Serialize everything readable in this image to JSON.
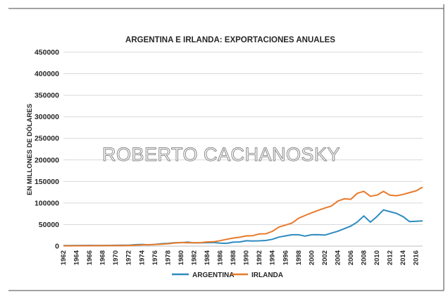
{
  "chart_data": {
    "type": "line",
    "title": "ARGENTINA  E IRLANDA:  EXPORTACIONES  ANUALES",
    "xlabel": "",
    "ylabel": "EN MILLONES DE DÓLARES",
    "ylim": [
      0,
      450000
    ],
    "yticks": [
      "0",
      "50000",
      "100000",
      "150000",
      "200000",
      "250000",
      "300000",
      "350000",
      "400000",
      "450000"
    ],
    "xticks": [
      "1962",
      "1964",
      "1966",
      "1968",
      "1970",
      "1972",
      "1974",
      "1976",
      "1978",
      "1980",
      "1982",
      "1984",
      "1986",
      "1988",
      "1990",
      "1992",
      "1994",
      "1996",
      "1998",
      "2000",
      "2002",
      "2004",
      "2006",
      "2008",
      "2010",
      "2012",
      "2014",
      "2016"
    ],
    "grid": true,
    "legend_position": "bottom",
    "watermark": "ROBERTO CACHANOSKY",
    "x": [
      1962,
      1963,
      1964,
      1965,
      1966,
      1967,
      1968,
      1969,
      1970,
      1971,
      1972,
      1973,
      1974,
      1975,
      1976,
      1977,
      1978,
      1979,
      1980,
      1981,
      1982,
      1983,
      1984,
      1985,
      1986,
      1987,
      1988,
      1989,
      1990,
      1991,
      1992,
      1993,
      1994,
      1995,
      1996,
      1997,
      1998,
      1999,
      2000,
      2001,
      2002,
      2003,
      2004,
      2005,
      2006,
      2007,
      2008,
      2009,
      2010,
      2011,
      2012,
      2013,
      2014,
      2015,
      2016,
      2017
    ],
    "series": [
      {
        "name": "ARGENTINA",
        "color": "#2e8bc0",
        "values": [
          1200,
          1300,
          1400,
          1500,
          1600,
          1500,
          1400,
          1600,
          1800,
          1900,
          2100,
          3300,
          3900,
          3000,
          3900,
          5600,
          6400,
          7800,
          8000,
          9100,
          7600,
          7800,
          8100,
          8400,
          6900,
          6400,
          9100,
          9600,
          12400,
          12000,
          12200,
          13100,
          15800,
          21000,
          23800,
          26400,
          26400,
          23300,
          26300,
          26500,
          25600,
          29900,
          34600,
          40400,
          46500,
          55900,
          70000,
          55700,
          68500,
          84000,
          80000,
          76000,
          68400,
          56800,
          57700,
          58400
        ]
      },
      {
        "name": "IRLANDA",
        "color": "#e87a2a",
        "values": [
          600,
          650,
          750,
          850,
          900,
          950,
          1050,
          1100,
          1200,
          1350,
          1600,
          2200,
          2800,
          3200,
          3600,
          4500,
          5600,
          7200,
          8400,
          7800,
          7900,
          8000,
          9600,
          10200,
          12600,
          15900,
          18700,
          20700,
          23800,
          24200,
          28300,
          28600,
          34400,
          44300,
          48700,
          53500,
          64400,
          71200,
          77300,
          83000,
          88200,
          92800,
          104400,
          109800,
          108700,
          122500,
          127100,
          115700,
          118300,
          126900,
          118200,
          116800,
          120000,
          124200,
          128300,
          136800
        ]
      }
    ]
  }
}
